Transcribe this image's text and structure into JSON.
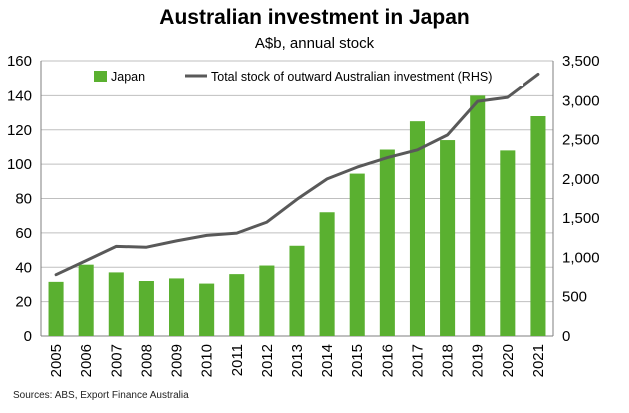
{
  "chart_data": {
    "type": "bar+line",
    "title": "Australian investment in Japan",
    "subtitle": "A$b, annual stock",
    "source": "Sources: ABS, Export Finance Australia",
    "categories": [
      "2005",
      "2006",
      "2007",
      "2008",
      "2009",
      "2010",
      "2011",
      "2012",
      "2013",
      "2014",
      "2015",
      "2016",
      "2017",
      "2018",
      "2019",
      "2020",
      "2021"
    ],
    "series": [
      {
        "name": "Japan",
        "type": "bar",
        "axis": "left",
        "color": "#5ab030",
        "values": [
          31.5,
          41.5,
          37,
          32,
          33.5,
          30.5,
          36,
          41,
          52.5,
          72,
          94.5,
          108.5,
          125,
          114,
          140,
          108,
          128
        ]
      },
      {
        "name": "Total stock of outward Australian investment (RHS)",
        "type": "line",
        "axis": "right",
        "color": "#595959",
        "values": [
          780,
          960,
          1140,
          1130,
          1210,
          1280,
          1310,
          1450,
          1740,
          2000,
          2150,
          2270,
          2370,
          2560,
          2990,
          3040,
          3330
        ]
      }
    ],
    "y_left": {
      "min": 0,
      "max": 160,
      "step": 20,
      "ticks": [
        "0",
        "20",
        "40",
        "60",
        "80",
        "100",
        "120",
        "140",
        "160"
      ]
    },
    "y_right": {
      "min": 0,
      "max": 3500,
      "step": 500,
      "ticks": [
        "0",
        "500",
        "1,000",
        "1,500",
        "2,000",
        "2,500",
        "3,000",
        "3,500"
      ]
    },
    "grid": true,
    "legend_position": "top"
  }
}
